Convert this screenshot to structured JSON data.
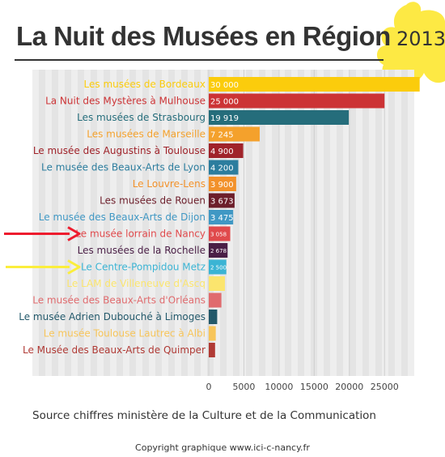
{
  "header": {
    "title": "La Nuit des Musées en Région",
    "year": "2013"
  },
  "footer": {
    "source": "Source chiffres ministère de la Culture et de la Communication",
    "copyright": "Copyright graphique www.ici-c-nancy.fr"
  },
  "colors": {
    "splash": "#fde944",
    "background_stripes": [
      "#eeeeee",
      "#e4e4e4"
    ],
    "arrow_red": "#ee1c2e",
    "arrow_yellow": "#fbee3c"
  },
  "annotations": [
    {
      "type": "arrow",
      "color": "#ee1c2e",
      "points_to": "Le musée lorrain de Nancy"
    },
    {
      "type": "arrow",
      "color": "#fbee3c",
      "points_to": "Le Centre-Pompidou Metz"
    }
  ],
  "chart_data": {
    "type": "bar",
    "orientation": "horizontal",
    "title": "La Nuit des Musées en Région",
    "xlabel": "",
    "ylabel": "",
    "xlim": [
      0,
      29000
    ],
    "xticks": [
      "0",
      "5000",
      "10000",
      "15000",
      "20000",
      "25000"
    ],
    "grid": true,
    "categories": [
      "Les musées de Bordeaux",
      "La Nuit des Mystères à Mulhouse",
      "Les musées de Strasbourg",
      "Les musées de Marseille",
      "Le musée des Augustins à Toulouse",
      "Le musée des Beaux-Arts de Lyon",
      "Le Louvre-Lens",
      "Les musées de Rouen",
      "Le musée des Beaux-Arts de Dijon",
      "Le musée lorrain de Nancy",
      "Les musées de la Rochelle",
      "Le Centre-Pompidou Metz",
      "Le LAM de Villeneuve d'Ascq",
      "Le musée des Beaux-Arts d'Orléans",
      "Le musée Adrien Dubouché à Limoges",
      "Le musée Toulouse Lautrec à Albi",
      "Le Musée des Beaux-Arts de Quimper"
    ],
    "values": [
      30000,
      25000,
      19919,
      7245,
      4900,
      4200,
      3900,
      3673,
      3475,
      3058,
      2678,
      2500,
      2300,
      1800,
      1200,
      1000,
      900
    ],
    "value_labels": [
      "30 000",
      "25 000",
      "19 919",
      "7 245",
      "4 900",
      "4 200",
      "3 900",
      "3 673",
      "3 475",
      "3 058",
      "2 678",
      "2 500",
      "",
      "",
      "",
      "",
      ""
    ],
    "colors": [
      "#fbcc0c",
      "#cc3335",
      "#256d7b",
      "#f4a12c",
      "#a0232a",
      "#2c7d9e",
      "#f2912b",
      "#6c1e2a",
      "#4098c4",
      "#e04a4c",
      "#4a1f46",
      "#3bb4d4",
      "#fbe56e",
      "#e06b6e",
      "#23596b",
      "#f7c55a",
      "#b03a35"
    ]
  }
}
